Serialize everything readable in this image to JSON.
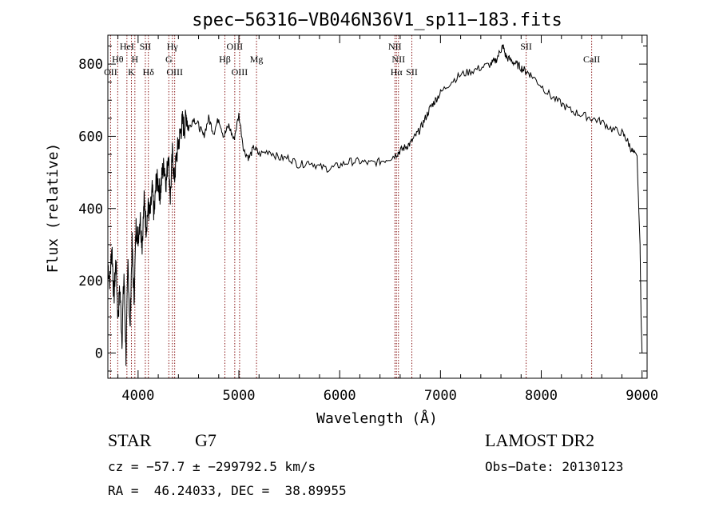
{
  "chart_data": {
    "type": "line",
    "title": "spec−56316−VB046N36V1_sp11−183.fits",
    "xlabel": "Wavelength (Å)",
    "ylabel": "Flux (relative)",
    "xlim": [
      3700,
      9050
    ],
    "ylim": [
      -70,
      880
    ],
    "xticks": [
      4000,
      5000,
      6000,
      7000,
      8000,
      9000
    ],
    "yticks": [
      0,
      200,
      400,
      600,
      800
    ],
    "grid": false,
    "line_color": "#000000",
    "marker_color": "#8b1a1a",
    "spectrum": {
      "x": [
        3700,
        3720,
        3740,
        3760,
        3780,
        3800,
        3820,
        3840,
        3860,
        3880,
        3900,
        3920,
        3940,
        3960,
        3980,
        4000,
        4020,
        4040,
        4060,
        4080,
        4100,
        4120,
        4140,
        4160,
        4180,
        4200,
        4220,
        4240,
        4260,
        4280,
        4300,
        4320,
        4340,
        4360,
        4380,
        4400,
        4420,
        4440,
        4460,
        4480,
        4500,
        4550,
        4600,
        4650,
        4700,
        4750,
        4800,
        4850,
        4900,
        4950,
        5000,
        5050,
        5100,
        5150,
        5200,
        5300,
        5400,
        5500,
        5600,
        5700,
        5800,
        5900,
        6000,
        6100,
        6200,
        6300,
        6400,
        6500,
        6560,
        6600,
        6650,
        6700,
        6750,
        6800,
        6850,
        6900,
        6950,
        7000,
        7100,
        7200,
        7300,
        7400,
        7500,
        7550,
        7600,
        7620,
        7650,
        7700,
        7750,
        7800,
        7850,
        7900,
        8000,
        8100,
        8200,
        8300,
        8400,
        8500,
        8600,
        8700,
        8800,
        8850,
        8900,
        8950,
        8980,
        8990,
        9000
      ],
      "y": [
        250,
        200,
        300,
        150,
        260,
        100,
        180,
        40,
        220,
        -10,
        250,
        60,
        300,
        150,
        350,
        320,
        380,
        300,
        420,
        350,
        400,
        380,
        450,
        380,
        480,
        470,
        440,
        500,
        520,
        470,
        560,
        430,
        550,
        480,
        540,
        580,
        610,
        640,
        620,
        660,
        620,
        650,
        630,
        600,
        650,
        610,
        650,
        600,
        630,
        590,
        660,
        560,
        540,
        570,
        550,
        560,
        540,
        540,
        520,
        530,
        515,
        510,
        520,
        530,
        530,
        525,
        530,
        540,
        550,
        560,
        570,
        580,
        600,
        620,
        650,
        680,
        700,
        720,
        750,
        770,
        780,
        790,
        800,
        810,
        840,
        850,
        820,
        810,
        800,
        790,
        780,
        770,
        740,
        710,
        690,
        670,
        660,
        650,
        640,
        620,
        610,
        590,
        560,
        540,
        300,
        100,
        0
      ]
    },
    "lines": [
      {
        "name": "OII",
        "x": 3727,
        "row": 3
      },
      {
        "name": "Hθ",
        "x": 3798,
        "row": 2
      },
      {
        "name": "HeI",
        "x": 3889,
        "row": 1
      },
      {
        "name": "K",
        "x": 3934,
        "row": 3
      },
      {
        "name": "H",
        "x": 3968,
        "row": 2
      },
      {
        "name": "SII",
        "x": 4072,
        "row": 1
      },
      {
        "name": "Hδ",
        "x": 4102,
        "row": 3
      },
      {
        "name": "Hγ",
        "x": 4340,
        "row": 1
      },
      {
        "name": "G",
        "x": 4305,
        "row": 2
      },
      {
        "name": "OIII",
        "x": 4363,
        "row": 3
      },
      {
        "name": "Hβ",
        "x": 4861,
        "row": 2
      },
      {
        "name": "OIII",
        "x": 4959,
        "row": 1
      },
      {
        "name": "OIII",
        "x": 5007,
        "row": 3
      },
      {
        "name": "Mg",
        "x": 5175,
        "row": 2
      },
      {
        "name": "NII",
        "x": 6548,
        "row": 1
      },
      {
        "name": "NII",
        "x": 6583,
        "row": 2
      },
      {
        "name": "Hα",
        "x": 6563,
        "row": 3
      },
      {
        "name": "SII",
        "x": 6716,
        "row": 3
      },
      {
        "name": "SII",
        "x": 7850,
        "row": 1
      },
      {
        "name": "CaII",
        "x": 8500,
        "row": 2
      }
    ]
  },
  "info": {
    "class_label": "STAR",
    "subclass": "G7",
    "survey": "LAMOST DR2",
    "cz_line": "cz = −57.7 ± −299792.5 km/s",
    "obs_date": "Obs−Date: 20130123",
    "coords": "RA =  46.24033, DEC =  38.89955"
  }
}
